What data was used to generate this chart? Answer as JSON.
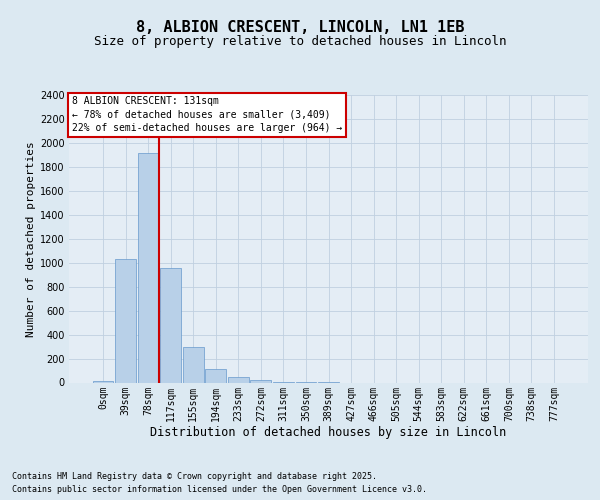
{
  "title_line1": "8, ALBION CRESCENT, LINCOLN, LN1 1EB",
  "title_line2": "Size of property relative to detached houses in Lincoln",
  "xlabel": "Distribution of detached houses by size in Lincoln",
  "ylabel": "Number of detached properties",
  "bar_labels": [
    "0sqm",
    "39sqm",
    "78sqm",
    "117sqm",
    "155sqm",
    "194sqm",
    "233sqm",
    "272sqm",
    "311sqm",
    "350sqm",
    "389sqm",
    "427sqm",
    "466sqm",
    "505sqm",
    "544sqm",
    "583sqm",
    "622sqm",
    "661sqm",
    "700sqm",
    "738sqm",
    "777sqm"
  ],
  "bar_values": [
    10,
    1030,
    1920,
    960,
    300,
    110,
    45,
    20,
    5,
    1,
    1,
    0,
    0,
    0,
    0,
    0,
    0,
    0,
    0,
    0,
    0
  ],
  "bar_color": "#b8d0e8",
  "bar_edge_color": "#6699cc",
  "vline_x": 2.5,
  "vline_color": "#cc0000",
  "annotation_text_line1": "8 ALBION CRESCENT: 131sqm",
  "annotation_text_line2": "← 78% of detached houses are smaller (3,409)",
  "annotation_text_line3": "22% of semi-detached houses are larger (964) →",
  "annotation_box_edge_color": "#cc0000",
  "ylim_max": 2400,
  "yticks": [
    0,
    200,
    400,
    600,
    800,
    1000,
    1200,
    1400,
    1600,
    1800,
    2000,
    2200,
    2400
  ],
  "grid_color": "#c0d0e0",
  "bg_color": "#dce9f2",
  "plot_bg_color": "#e4edf5",
  "footer_line1": "Contains HM Land Registry data © Crown copyright and database right 2025.",
  "footer_line2": "Contains public sector information licensed under the Open Government Licence v3.0.",
  "title_fontsize": 11,
  "subtitle_fontsize": 9,
  "ylabel_fontsize": 8,
  "xlabel_fontsize": 8.5,
  "tick_fontsize": 7,
  "annotation_fontsize": 7,
  "footer_fontsize": 6
}
